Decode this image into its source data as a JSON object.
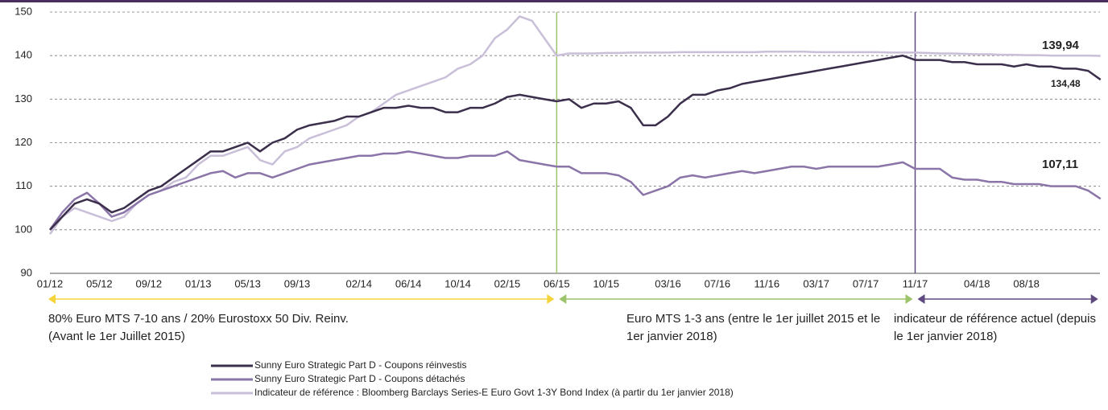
{
  "chart_data": {
    "type": "line",
    "categories": [
      "01/12",
      null,
      null,
      null,
      "05/12",
      null,
      null,
      null,
      "09/12",
      null,
      null,
      null,
      "01/13",
      null,
      null,
      null,
      "05/13",
      null,
      null,
      null,
      "09/13",
      null,
      null,
      null,
      null,
      "02/14",
      null,
      null,
      null,
      "06/14",
      null,
      null,
      null,
      "10/14",
      null,
      null,
      null,
      "02/15",
      null,
      null,
      null,
      "06/15",
      null,
      null,
      null,
      "10/15",
      null,
      null,
      null,
      null,
      "03/16",
      null,
      null,
      null,
      "07/16",
      null,
      null,
      null,
      "11/16",
      null,
      null,
      null,
      "03/17",
      null,
      null,
      null,
      "07/17",
      null,
      null,
      null,
      "11/17",
      null,
      null,
      null,
      null,
      "04/18",
      null,
      null,
      null,
      "08/18",
      null,
      null,
      null,
      null,
      null,
      null
    ],
    "series": [
      {
        "name": "Sunny Euro Strategic Part D - Coupons réinvestis",
        "color": "#3b2f4b",
        "values": [
          100,
          103,
          106,
          107,
          106,
          104,
          105,
          107,
          109,
          110,
          112,
          114,
          116,
          118,
          118,
          119,
          120,
          118,
          120,
          121,
          123,
          124,
          124.5,
          125,
          126,
          126,
          127,
          128,
          128,
          128.5,
          128,
          128,
          127,
          127,
          128,
          128,
          129,
          130.5,
          131,
          130.5,
          130,
          129.5,
          130,
          128,
          129,
          129,
          129.5,
          128,
          124,
          124,
          126,
          129,
          131,
          131,
          132,
          132.5,
          133.5,
          134,
          134.5,
          135,
          135.5,
          136,
          136.5,
          137,
          137.5,
          138,
          138.5,
          139,
          139.5,
          140,
          139,
          139,
          139,
          138.5,
          138.5,
          138,
          138,
          138,
          137.5,
          138,
          137.5,
          137.5,
          137,
          137,
          136.5,
          134.48
        ],
        "value_labels": [
          null,
          null,
          null,
          null,
          null,
          null,
          null,
          null,
          null,
          null,
          null,
          null,
          null,
          null,
          null,
          null,
          null,
          null,
          null,
          null,
          null,
          null,
          null,
          null,
          null,
          null,
          null,
          null,
          null,
          null,
          null,
          null,
          null,
          null,
          null,
          null,
          null,
          null,
          null,
          null,
          null,
          null,
          null,
          null,
          null,
          null,
          null,
          null,
          null,
          null,
          null,
          null,
          null,
          null,
          null,
          null,
          null,
          null,
          null,
          null,
          null,
          null,
          null,
          null,
          null,
          null,
          null,
          null,
          null,
          null,
          null,
          null,
          null,
          null,
          null,
          null,
          null,
          null,
          null,
          null,
          null,
          null,
          null,
          null,
          null,
          "134,48"
        ]
      },
      {
        "name": "Sunny Euro Strategic Part D - Coupons détachés",
        "color": "#8b75a8",
        "values": [
          100,
          104,
          107,
          108.5,
          106,
          103,
          104,
          106,
          108,
          109,
          110,
          111,
          112,
          113,
          113.5,
          112,
          113,
          113,
          112,
          113,
          114,
          115,
          115.5,
          116,
          116.5,
          117,
          117,
          117.5,
          117.5,
          118,
          117.5,
          117,
          116.5,
          116.5,
          117,
          117,
          117,
          118,
          116,
          115.5,
          115,
          114.5,
          114.5,
          113,
          113,
          113,
          112.5,
          111,
          108,
          109,
          110,
          112,
          112.5,
          112,
          112.5,
          113,
          113.5,
          113,
          113.5,
          114,
          114.5,
          114.5,
          114,
          114.5,
          114.5,
          114.5,
          114.5,
          114.5,
          115,
          115.5,
          114,
          114,
          114,
          112,
          111.5,
          111.5,
          111,
          111,
          110.5,
          110.5,
          110.5,
          110,
          110,
          110,
          109,
          107.11
        ],
        "value_labels": [
          null,
          null,
          null,
          null,
          null,
          null,
          null,
          null,
          null,
          null,
          null,
          null,
          null,
          null,
          null,
          null,
          null,
          null,
          null,
          null,
          null,
          null,
          null,
          null,
          null,
          null,
          null,
          null,
          null,
          null,
          null,
          null,
          null,
          null,
          null,
          null,
          null,
          null,
          null,
          null,
          null,
          null,
          null,
          null,
          null,
          null,
          null,
          null,
          null,
          null,
          null,
          null,
          null,
          null,
          null,
          null,
          null,
          null,
          null,
          null,
          null,
          null,
          null,
          null,
          null,
          null,
          null,
          null,
          null,
          null,
          null,
          null,
          null,
          null,
          null,
          null,
          null,
          null,
          null,
          null,
          null,
          null,
          null,
          null,
          null,
          "107,11"
        ]
      },
      {
        "name": "Indicateur de référence : Bloomberg Barclays Series-E Euro Govt 1-3Y Bond Index (à partir du 1er janvier 2018)",
        "color": "#c9bfd8",
        "values": [
          99,
          103,
          105,
          104,
          103,
          102,
          103,
          106,
          108,
          109,
          111,
          112,
          115,
          117,
          117,
          118,
          119,
          116,
          115,
          118,
          119,
          121,
          122,
          123,
          124,
          126,
          127,
          129,
          131,
          132,
          133,
          134,
          135,
          137,
          138,
          140,
          144,
          146,
          149,
          148,
          144,
          140,
          140.5,
          140.5,
          140.5,
          140.6,
          140.6,
          140.7,
          140.7,
          140.7,
          140.7,
          140.8,
          140.8,
          140.8,
          140.8,
          140.8,
          140.8,
          140.8,
          140.9,
          140.9,
          140.9,
          140.9,
          140.8,
          140.8,
          140.8,
          140.8,
          140.8,
          140.8,
          140.7,
          140.7,
          140.7,
          140.6,
          140.5,
          140.5,
          140.4,
          140.3,
          140.3,
          140.2,
          140.2,
          140.1,
          140.1,
          140,
          140,
          140,
          140,
          139.94
        ],
        "value_labels": [
          null,
          null,
          null,
          null,
          null,
          null,
          null,
          null,
          null,
          null,
          null,
          null,
          null,
          null,
          null,
          null,
          null,
          null,
          null,
          null,
          null,
          null,
          null,
          null,
          null,
          null,
          null,
          null,
          null,
          null,
          null,
          null,
          null,
          null,
          null,
          null,
          null,
          null,
          null,
          null,
          null,
          null,
          null,
          null,
          null,
          null,
          null,
          null,
          null,
          null,
          null,
          null,
          null,
          null,
          null,
          null,
          null,
          null,
          null,
          null,
          null,
          null,
          null,
          null,
          null,
          null,
          null,
          null,
          null,
          null,
          null,
          null,
          null,
          null,
          null,
          null,
          null,
          null,
          null,
          null,
          null,
          null,
          null,
          null,
          null,
          "139,94"
        ]
      }
    ],
    "ylim": [
      90,
      150
    ],
    "yticks": [
      90,
      100,
      110,
      120,
      130,
      140,
      150
    ],
    "grid": true,
    "regimes": [
      {
        "from": "01/12",
        "to": "06/15",
        "color": "#f5d33a",
        "text": "80% Euro MTS 7-10 ans / 20% Eurostoxx 50 Div. Reinv. (Avant le 1er Juillet 2015)"
      },
      {
        "from": "06/15",
        "to": "11/17",
        "color": "#9cc46a",
        "text": "Euro MTS 1-3 ans (entre le 1er juillet 2015 et le 1er janvier 2018)"
      },
      {
        "from": "11/17",
        "color": "#5f4a80",
        "text": "indicateur de référence actuel (depuis le 1er janvier 2018)"
      }
    ]
  }
}
